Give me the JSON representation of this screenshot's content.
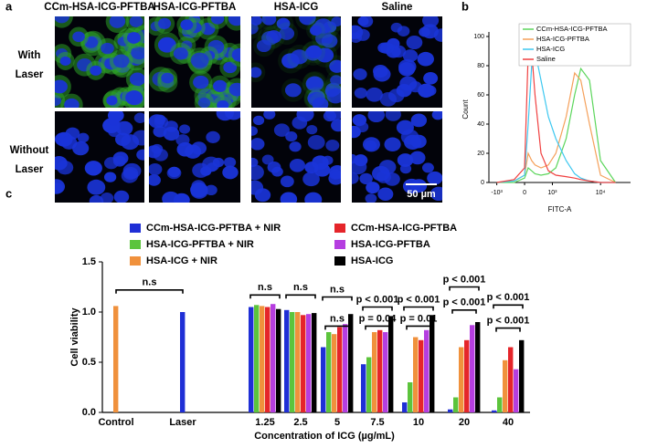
{
  "panel_a": {
    "letter": "a",
    "columns": [
      "CCm-HSA-ICG-PFTBA",
      "HSA-ICG-PFTBA",
      "HSA-ICG",
      "Saline"
    ],
    "rows": [
      [
        "With",
        "Laser"
      ],
      [
        "Without",
        "Laser"
      ]
    ],
    "scale_bar": "50 µm"
  },
  "chart_data": [
    {
      "type": "line",
      "panel": "b",
      "x_label": "FITC-A",
      "y_label": "Count",
      "x": [
        -1000,
        -300,
        0,
        100,
        200,
        300,
        500,
        800,
        1200,
        2000,
        3000,
        4000,
        6000,
        10000,
        20000
      ],
      "series": [
        {
          "name": "CCm-HSA-ICG-PFTBA",
          "color": "#5cd65c",
          "values": [
            0,
            0,
            3,
            10,
            8,
            6,
            5,
            6,
            10,
            30,
            60,
            78,
            70,
            15,
            0
          ]
        },
        {
          "name": "HSA-ICG-PFTBA",
          "color": "#f5a05a",
          "values": [
            0,
            1,
            5,
            20,
            15,
            12,
            10,
            12,
            20,
            45,
            75,
            70,
            40,
            5,
            0
          ]
        },
        {
          "name": "HSA-ICG",
          "color": "#3ec8f0",
          "values": [
            0,
            1,
            5,
            40,
            80,
            90,
            70,
            45,
            30,
            15,
            6,
            3,
            1,
            0,
            0
          ]
        },
        {
          "name": "Saline",
          "color": "#f04040",
          "values": [
            0,
            2,
            10,
            88,
            90,
            60,
            20,
            8,
            5,
            4,
            3,
            2,
            1,
            0,
            0
          ]
        }
      ],
      "xlim": [
        -1500,
        40000
      ],
      "xticks": [
        {
          "value": -1000,
          "label": "-10³"
        },
        0,
        {
          "value": 1000,
          "label": "10³"
        },
        {
          "value": 10000,
          "label": "10⁴"
        }
      ],
      "ylim": [
        0,
        100
      ],
      "yticks": [
        0,
        20,
        40,
        60,
        80,
        100
      ],
      "legend": "top-right"
    },
    {
      "type": "bar",
      "panel": "c",
      "x_label": "Concentration of ICG (µg/mL)",
      "y_label": "Cell viability",
      "categories": [
        "Control",
        "Laser",
        "1.25",
        "2.5",
        "5",
        "7.5",
        "10",
        "20",
        "40"
      ],
      "series": [
        {
          "name": "CCm-HSA-ICG-PFTBA + NIR",
          "color": "#1f2fd6",
          "values": [
            null,
            1.0,
            1.05,
            1.02,
            0.65,
            0.48,
            0.1,
            0.03,
            0.02
          ]
        },
        {
          "name": "HSA-ICG-PFTBA + NIR",
          "color": "#5cc43c",
          "values": [
            null,
            null,
            1.07,
            1.0,
            0.8,
            0.55,
            0.3,
            0.15,
            0.15
          ]
        },
        {
          "name": "HSA-ICG + NIR",
          "color": "#f0913c",
          "values": [
            1.06,
            null,
            1.06,
            1.0,
            0.78,
            0.8,
            0.75,
            0.65,
            0.52
          ]
        },
        {
          "name": "CCm-HSA-ICG-PFTBA",
          "color": "#e5252a",
          "values": [
            null,
            null,
            1.05,
            0.97,
            0.85,
            0.82,
            0.72,
            0.72,
            0.65
          ]
        },
        {
          "name": "HSA-ICG-PFTBA",
          "color": "#b53ee0",
          "values": [
            null,
            null,
            1.08,
            0.98,
            0.88,
            0.8,
            0.82,
            0.87,
            0.43
          ]
        },
        {
          "name": "HSA-ICG",
          "color": "#000000",
          "values": [
            null,
            null,
            1.03,
            0.99,
            0.98,
            0.96,
            0.97,
            0.9,
            0.72
          ]
        }
      ],
      "ylim": [
        0,
        1.5
      ],
      "yticks": [
        {
          "value": 0,
          "label": "0.0"
        },
        0.5,
        {
          "value": 1,
          "label": "1.0"
        },
        1.5
      ],
      "annotations": [
        "n.s",
        "n.s",
        "n.s",
        "n.s",
        "n.s",
        "p < 0.001",
        "p = 0.04",
        "p < 0.001",
        "p = 0.01",
        "p < 0.001",
        "p < 0.001",
        "p < 0.001",
        "p < 0.001"
      ]
    }
  ]
}
